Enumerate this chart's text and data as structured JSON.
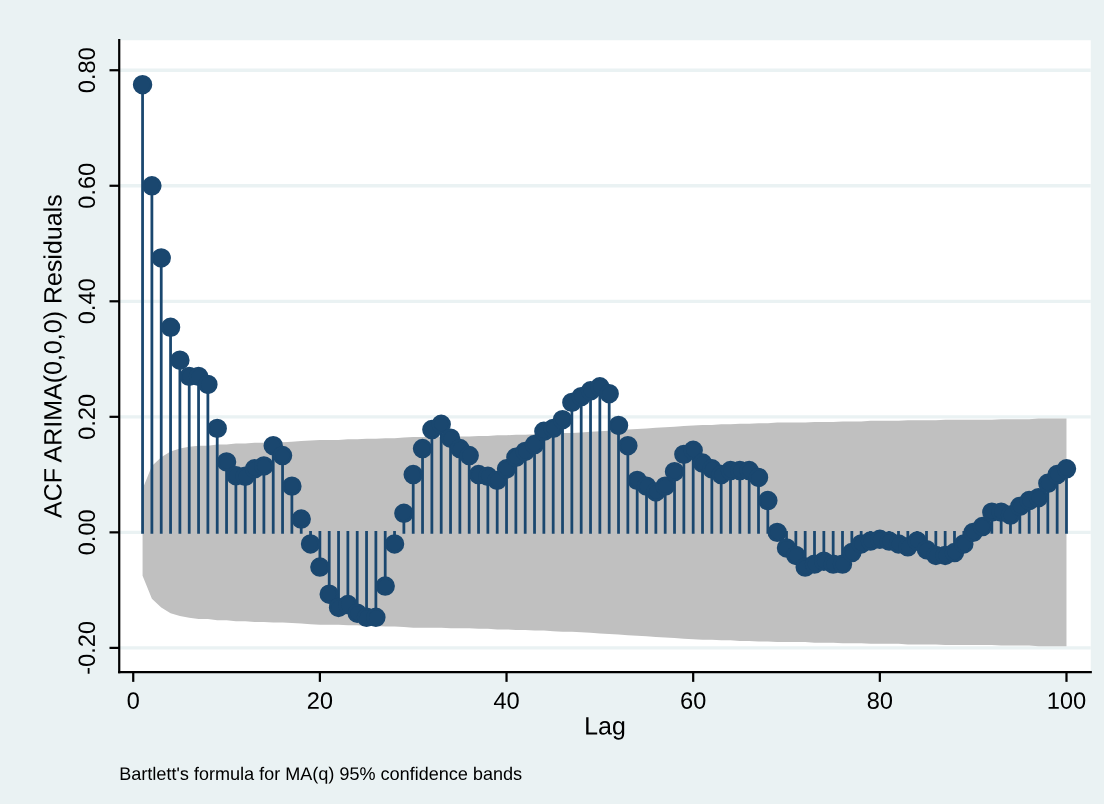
{
  "chart_data": {
    "type": "lollipop",
    "xlabel": "Lag",
    "ylabel": "ACF ARIMA(0,0,0) Residuals",
    "annotations": [
      "Bartlett's formula for MA(q) 95% confidence bands"
    ],
    "xlim": [
      -1.5,
      102.6
    ],
    "xticks": [
      0,
      20,
      40,
      60,
      80,
      100
    ],
    "ylim": [
      -0.242,
      0.852
    ],
    "yticks": [
      {
        "value": -0.2,
        "label": "-0.20"
      },
      {
        "value": 0,
        "label": "0.00"
      },
      {
        "value": 0.2,
        "label": "0.20"
      },
      {
        "value": 0.4,
        "label": "0.40"
      },
      {
        "value": 0.6,
        "label": "0.60"
      },
      {
        "value": 0.8,
        "label": "0.80"
      }
    ],
    "grid": "y",
    "marker": "circle",
    "series": [
      {
        "color": "#1a476f",
        "x": [
          1,
          2,
          3,
          4,
          5,
          6,
          7,
          8,
          9,
          10,
          11,
          12,
          13,
          14,
          15,
          16,
          17,
          18,
          19,
          20,
          21,
          22,
          23,
          24,
          25,
          26,
          27,
          28,
          29,
          30,
          31,
          32,
          33,
          34,
          35,
          36,
          37,
          38,
          39,
          40,
          41,
          42,
          43,
          44,
          45,
          46,
          47,
          48,
          49,
          50,
          51,
          52,
          53,
          54,
          55,
          56,
          57,
          58,
          59,
          60,
          61,
          62,
          63,
          64,
          65,
          66,
          67,
          68,
          69,
          70,
          71,
          72,
          73,
          74,
          75,
          76,
          77,
          78,
          79,
          80,
          81,
          82,
          83,
          84,
          85,
          86,
          87,
          88,
          89,
          90,
          91,
          92,
          93,
          94,
          95,
          96,
          97,
          98,
          99,
          100
        ],
        "values": [
          0.775,
          0.6,
          0.475,
          0.355,
          0.298,
          0.27,
          0.27,
          0.256,
          0.18,
          0.122,
          0.098,
          0.097,
          0.11,
          0.115,
          0.15,
          0.133,
          0.08,
          0.023,
          -0.02,
          -0.06,
          -0.107,
          -0.13,
          -0.125,
          -0.14,
          -0.147,
          -0.147,
          -0.093,
          -0.02,
          0.033,
          0.1,
          0.145,
          0.178,
          0.187,
          0.163,
          0.145,
          0.133,
          0.1,
          0.097,
          0.09,
          0.11,
          0.13,
          0.14,
          0.152,
          0.175,
          0.18,
          0.195,
          0.225,
          0.235,
          0.245,
          0.252,
          0.24,
          0.185,
          0.15,
          0.09,
          0.08,
          0.07,
          0.08,
          0.105,
          0.135,
          0.142,
          0.12,
          0.11,
          0.1,
          0.107,
          0.107,
          0.107,
          0.095,
          0.055,
          0.0,
          -0.027,
          -0.04,
          -0.06,
          -0.055,
          -0.05,
          -0.055,
          -0.055,
          -0.035,
          -0.02,
          -0.015,
          -0.012,
          -0.015,
          -0.02,
          -0.025,
          -0.015,
          -0.03,
          -0.04,
          -0.04,
          -0.035,
          -0.02,
          0.0,
          0.01,
          0.035,
          0.035,
          0.03,
          0.045,
          0.055,
          0.06,
          0.085,
          0.1,
          0.11
        ],
        "upper": [
          0.075,
          0.115,
          0.13,
          0.14,
          0.145,
          0.148,
          0.15,
          0.15,
          0.152,
          0.152,
          0.154,
          0.154,
          0.155,
          0.155,
          0.156,
          0.156,
          0.157,
          0.158,
          0.159,
          0.16,
          0.16,
          0.16,
          0.161,
          0.161,
          0.162,
          0.162,
          0.163,
          0.163,
          0.164,
          0.165,
          0.165,
          0.165,
          0.165,
          0.166,
          0.166,
          0.166,
          0.167,
          0.167,
          0.168,
          0.168,
          0.169,
          0.169,
          0.17,
          0.17,
          0.171,
          0.172,
          0.172,
          0.173,
          0.174,
          0.175,
          0.176,
          0.177,
          0.178,
          0.179,
          0.18,
          0.181,
          0.182,
          0.183,
          0.184,
          0.185,
          0.186,
          0.186,
          0.187,
          0.187,
          0.188,
          0.188,
          0.189,
          0.189,
          0.19,
          0.19,
          0.19,
          0.19,
          0.191,
          0.191,
          0.191,
          0.192,
          0.192,
          0.192,
          0.193,
          0.193,
          0.193,
          0.193,
          0.194,
          0.194,
          0.194,
          0.194,
          0.195,
          0.195,
          0.195,
          0.195,
          0.195,
          0.195,
          0.196,
          0.196,
          0.196,
          0.196,
          0.197,
          0.197,
          0.197,
          0.197
        ],
        "lower": [
          -0.075,
          -0.115,
          -0.13,
          -0.14,
          -0.145,
          -0.148,
          -0.15,
          -0.15,
          -0.152,
          -0.152,
          -0.154,
          -0.154,
          -0.155,
          -0.155,
          -0.156,
          -0.156,
          -0.157,
          -0.158,
          -0.159,
          -0.16,
          -0.16,
          -0.16,
          -0.161,
          -0.161,
          -0.162,
          -0.162,
          -0.163,
          -0.163,
          -0.164,
          -0.165,
          -0.165,
          -0.165,
          -0.165,
          -0.166,
          -0.166,
          -0.166,
          -0.167,
          -0.167,
          -0.168,
          -0.168,
          -0.169,
          -0.169,
          -0.17,
          -0.17,
          -0.171,
          -0.172,
          -0.172,
          -0.173,
          -0.174,
          -0.175,
          -0.176,
          -0.177,
          -0.178,
          -0.179,
          -0.18,
          -0.181,
          -0.182,
          -0.183,
          -0.184,
          -0.185,
          -0.186,
          -0.186,
          -0.187,
          -0.187,
          -0.188,
          -0.188,
          -0.189,
          -0.189,
          -0.19,
          -0.19,
          -0.19,
          -0.19,
          -0.191,
          -0.191,
          -0.191,
          -0.192,
          -0.192,
          -0.192,
          -0.193,
          -0.193,
          -0.193,
          -0.193,
          -0.194,
          -0.194,
          -0.194,
          -0.194,
          -0.195,
          -0.195,
          -0.195,
          -0.195,
          -0.195,
          -0.195,
          -0.196,
          -0.196,
          -0.196,
          -0.196,
          -0.197,
          -0.197,
          -0.197,
          -0.197
        ]
      }
    ]
  }
}
